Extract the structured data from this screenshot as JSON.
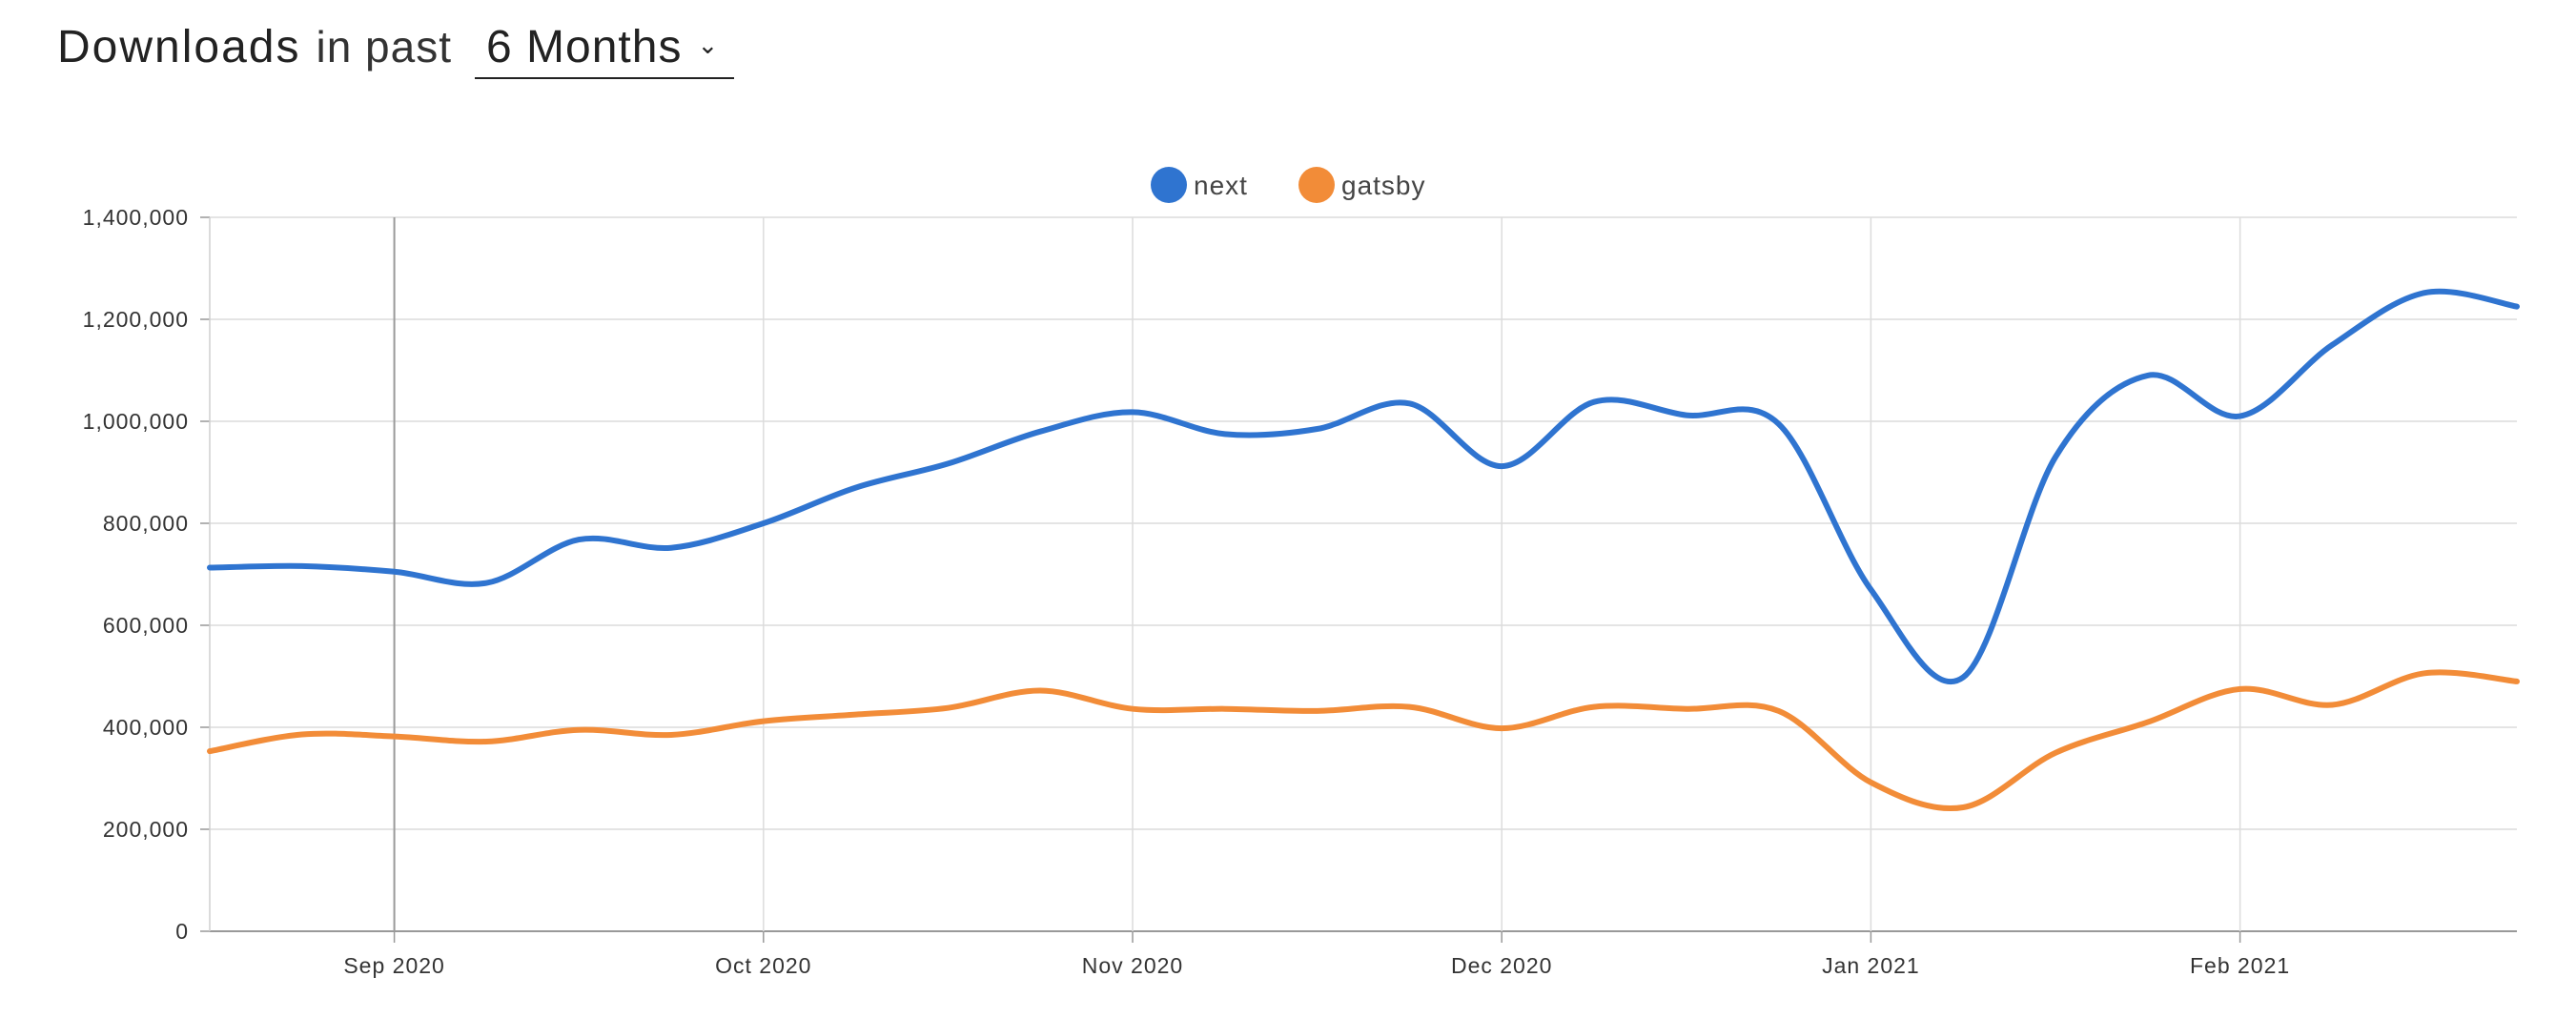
{
  "header": {
    "title": "Downloads",
    "subtitle": "in past",
    "range_label": "6 Months"
  },
  "chart_data": {
    "type": "line",
    "xlabel": "",
    "ylabel": "",
    "ylim": [
      0,
      1400000
    ],
    "yticks": [
      {
        "value": 0,
        "label": "0"
      },
      {
        "value": 200000,
        "label": "200,000"
      },
      {
        "value": 400000,
        "label": "400,000"
      },
      {
        "value": 600000,
        "label": "600,000"
      },
      {
        "value": 800000,
        "label": "800,000"
      },
      {
        "value": 1000000,
        "label": "1,000,000"
      },
      {
        "value": 1200000,
        "label": "1,200,000"
      },
      {
        "value": 1400000,
        "label": "1,400,000"
      }
    ],
    "xlim": [
      "2020-08-16",
      "2021-02-07"
    ],
    "xticks": [
      {
        "date": "2020-08-30",
        "label": "Sep 2020"
      },
      {
        "date": "2020-09-27",
        "label": "Oct 2020"
      },
      {
        "date": "2020-10-25",
        "label": "Nov 2020"
      },
      {
        "date": "2020-11-22",
        "label": "Dec 2020"
      },
      {
        "date": "2020-12-20",
        "label": "Jan 2021"
      },
      {
        "date": "2021-01-17",
        "label": "Feb 2021"
      }
    ],
    "grid": true,
    "legend_position": "top-center",
    "series": [
      {
        "name": "next",
        "color": "#2f74d0",
        "points": [
          [
            "2020-08-16",
            713000
          ],
          [
            "2020-08-23",
            716000
          ],
          [
            "2020-08-30",
            705000
          ],
          [
            "2020-09-06",
            683000
          ],
          [
            "2020-09-13",
            768000
          ],
          [
            "2020-09-20",
            752000
          ],
          [
            "2020-09-27",
            800000
          ],
          [
            "2020-10-04",
            870000
          ],
          [
            "2020-10-11",
            917000
          ],
          [
            "2020-10-18",
            980000
          ],
          [
            "2020-10-25",
            1018000
          ],
          [
            "2020-11-01",
            975000
          ],
          [
            "2020-11-08",
            985000
          ],
          [
            "2020-11-15",
            1035000
          ],
          [
            "2020-11-22",
            912000
          ],
          [
            "2020-11-29",
            1038000
          ],
          [
            "2020-12-06",
            1012000
          ],
          [
            "2020-12-13",
            995000
          ],
          [
            "2020-12-20",
            670000
          ],
          [
            "2020-12-27",
            498000
          ],
          [
            "2021-01-03",
            930000
          ],
          [
            "2021-01-10",
            1090000
          ],
          [
            "2021-01-17",
            1010000
          ],
          [
            "2021-01-24",
            1150000
          ],
          [
            "2021-01-31",
            1252000
          ],
          [
            "2021-02-07",
            1225000
          ]
        ]
      },
      {
        "name": "gatsby",
        "color": "#f28c38",
        "points": [
          [
            "2020-08-16",
            353000
          ],
          [
            "2020-08-23",
            386000
          ],
          [
            "2020-08-30",
            382000
          ],
          [
            "2020-09-06",
            372000
          ],
          [
            "2020-09-13",
            395000
          ],
          [
            "2020-09-20",
            385000
          ],
          [
            "2020-09-27",
            412000
          ],
          [
            "2020-10-04",
            425000
          ],
          [
            "2020-10-11",
            438000
          ],
          [
            "2020-10-18",
            472000
          ],
          [
            "2020-10-25",
            436000
          ],
          [
            "2020-11-01",
            436000
          ],
          [
            "2020-11-08",
            432000
          ],
          [
            "2020-11-15",
            440000
          ],
          [
            "2020-11-22",
            398000
          ],
          [
            "2020-11-29",
            440000
          ],
          [
            "2020-12-06",
            436000
          ],
          [
            "2020-12-13",
            432000
          ],
          [
            "2020-12-20",
            292000
          ],
          [
            "2020-12-27",
            243000
          ],
          [
            "2021-01-03",
            350000
          ],
          [
            "2021-01-10",
            410000
          ],
          [
            "2021-01-17",
            475000
          ],
          [
            "2021-01-24",
            444000
          ],
          [
            "2021-01-31",
            506000
          ],
          [
            "2021-02-07",
            490000
          ]
        ]
      }
    ]
  }
}
